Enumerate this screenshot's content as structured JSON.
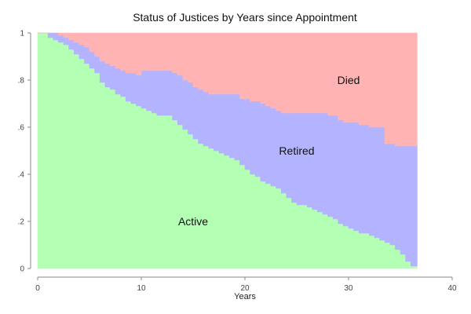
{
  "chart_data": {
    "type": "area",
    "title": "Status of Justices by Years since Appointment",
    "xlabel": "Years",
    "ylabel": "",
    "xlim": [
      0,
      40
    ],
    "ylim": [
      0,
      1
    ],
    "x_ticks": [
      {
        "value": 0,
        "label": "0"
      },
      {
        "value": 10,
        "label": "10"
      },
      {
        "value": 20,
        "label": "20"
      },
      {
        "value": 30,
        "label": "30"
      },
      {
        "value": 40,
        "label": "40"
      }
    ],
    "y_ticks": [
      {
        "value": 0,
        "label": "0"
      },
      {
        "value": 0.2,
        "label": ".2"
      },
      {
        "value": 0.4,
        "label": ".4"
      },
      {
        "value": 0.6,
        "label": ".6"
      },
      {
        "value": 0.8,
        "label": ".8"
      },
      {
        "value": 1,
        "label": "1"
      }
    ],
    "grid": false,
    "stacked": true,
    "step": true,
    "x": [
      0,
      0.5,
      1,
      1.5,
      2,
      2.5,
      3,
      3.5,
      4,
      4.5,
      5,
      5.5,
      6,
      6.5,
      7,
      7.5,
      8,
      8.5,
      9,
      9.5,
      10,
      10.5,
      11,
      11.5,
      12,
      12.5,
      13,
      13.5,
      14,
      14.5,
      15,
      15.5,
      16,
      16.5,
      17,
      17.5,
      18,
      18.5,
      19,
      19.5,
      20,
      20.5,
      21,
      21.5,
      22,
      22.5,
      23,
      23.5,
      24,
      24.5,
      25,
      25.5,
      26,
      26.5,
      27,
      27.5,
      28,
      28.5,
      29,
      29.5,
      30,
      30.5,
      31,
      31.5,
      32,
      32.5,
      33,
      33.5,
      34,
      34.5,
      35,
      35.5,
      36,
      36.5
    ],
    "series": [
      {
        "name": "Active",
        "color": "#b3ffb3",
        "values": [
          1.0,
          1.0,
          0.98,
          0.97,
          0.96,
          0.95,
          0.93,
          0.91,
          0.89,
          0.87,
          0.85,
          0.83,
          0.79,
          0.77,
          0.76,
          0.74,
          0.73,
          0.71,
          0.7,
          0.69,
          0.68,
          0.67,
          0.66,
          0.65,
          0.65,
          0.65,
          0.63,
          0.61,
          0.59,
          0.57,
          0.55,
          0.53,
          0.52,
          0.51,
          0.5,
          0.49,
          0.48,
          0.47,
          0.46,
          0.44,
          0.42,
          0.4,
          0.39,
          0.37,
          0.36,
          0.35,
          0.34,
          0.32,
          0.3,
          0.28,
          0.27,
          0.27,
          0.26,
          0.25,
          0.24,
          0.23,
          0.22,
          0.21,
          0.19,
          0.18,
          0.17,
          0.16,
          0.15,
          0.15,
          0.14,
          0.13,
          0.12,
          0.11,
          0.1,
          0.08,
          0.06,
          0.03,
          0.01,
          0.01
        ]
      },
      {
        "name": "Retired",
        "color": "#b3b3ff",
        "values": [
          0.0,
          0.0,
          0.02,
          0.03,
          0.03,
          0.03,
          0.04,
          0.05,
          0.06,
          0.07,
          0.07,
          0.07,
          0.09,
          0.1,
          0.1,
          0.11,
          0.11,
          0.12,
          0.13,
          0.13,
          0.16,
          0.17,
          0.18,
          0.19,
          0.19,
          0.19,
          0.2,
          0.21,
          0.21,
          0.22,
          0.22,
          0.23,
          0.23,
          0.23,
          0.24,
          0.25,
          0.26,
          0.27,
          0.28,
          0.28,
          0.3,
          0.31,
          0.32,
          0.33,
          0.33,
          0.33,
          0.33,
          0.34,
          0.36,
          0.38,
          0.39,
          0.39,
          0.4,
          0.41,
          0.42,
          0.43,
          0.43,
          0.44,
          0.44,
          0.44,
          0.45,
          0.46,
          0.46,
          0.46,
          0.46,
          0.47,
          0.48,
          0.42,
          0.43,
          0.44,
          0.46,
          0.49,
          0.51,
          0.51
        ]
      },
      {
        "name": "Died",
        "color": "#ffb3b3",
        "values": [
          0.0,
          0.0,
          0.0,
          0.0,
          0.01,
          0.02,
          0.03,
          0.04,
          0.05,
          0.06,
          0.08,
          0.1,
          0.12,
          0.13,
          0.14,
          0.15,
          0.16,
          0.17,
          0.17,
          0.18,
          0.16,
          0.16,
          0.16,
          0.16,
          0.16,
          0.16,
          0.17,
          0.18,
          0.2,
          0.21,
          0.23,
          0.24,
          0.25,
          0.26,
          0.26,
          0.26,
          0.26,
          0.26,
          0.26,
          0.28,
          0.28,
          0.29,
          0.29,
          0.3,
          0.31,
          0.32,
          0.33,
          0.34,
          0.34,
          0.34,
          0.34,
          0.34,
          0.34,
          0.34,
          0.34,
          0.34,
          0.35,
          0.35,
          0.37,
          0.38,
          0.38,
          0.38,
          0.39,
          0.39,
          0.4,
          0.4,
          0.4,
          0.47,
          0.47,
          0.48,
          0.48,
          0.48,
          0.48,
          0.48
        ]
      }
    ],
    "annotations": [
      {
        "text": "Active",
        "x": 15,
        "y": 0.2
      },
      {
        "text": "Retired",
        "x": 25,
        "y": 0.5
      },
      {
        "text": "Died",
        "x": 30,
        "y": 0.8
      }
    ]
  }
}
